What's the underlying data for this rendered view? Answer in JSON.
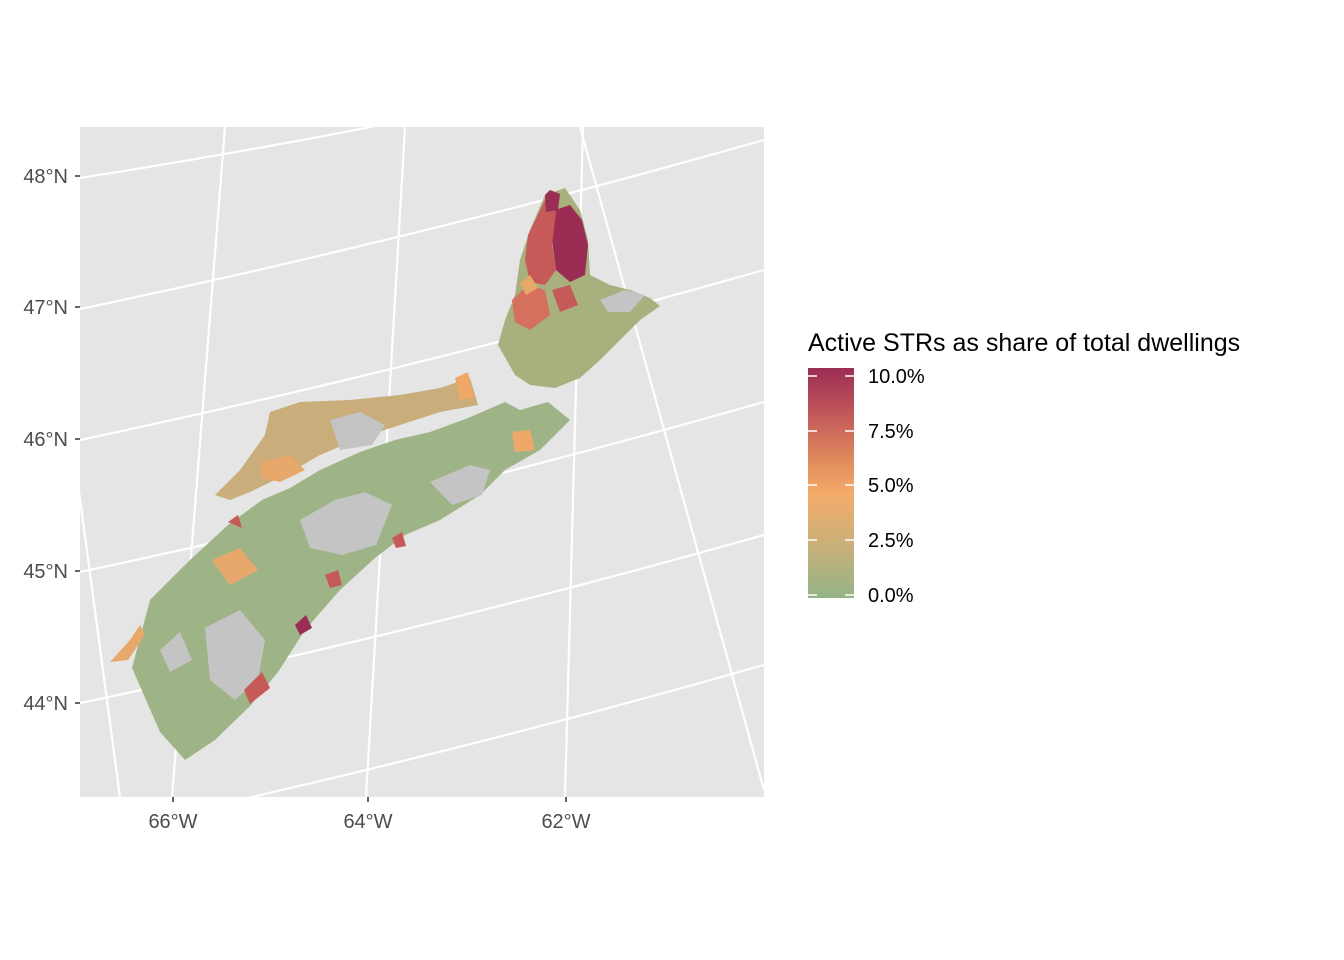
{
  "map": {
    "type": "choropleth",
    "region": "Nova Scotia",
    "projection": "conic, graticule tilted",
    "panel_background": "#e5e5e5",
    "grid_color": "#ffffff",
    "no_data_color": "#c4c4c4",
    "lat_labels": [
      "48°N",
      "47°N",
      "46°N",
      "45°N",
      "44°N"
    ],
    "lon_labels": [
      "66°W",
      "64°W",
      "62°W"
    ],
    "legend": {
      "title": "Active STRs as share of total dwellings",
      "position": "right",
      "labels": [
        "10.0%",
        "7.5%",
        "5.0%",
        "2.5%",
        "0.0%"
      ],
      "gradient": [
        "#9b2d55",
        "#c2585a",
        "#e08a5c",
        "#f4ac6a",
        "#c7b07a",
        "#94b488"
      ]
    },
    "scale_colors": {
      "pct_0": "#94b488",
      "pct_2_5": "#c7b07a",
      "pct_5": "#f4ac6a",
      "pct_7_5": "#d4705d",
      "pct_10": "#9b2d55"
    }
  }
}
